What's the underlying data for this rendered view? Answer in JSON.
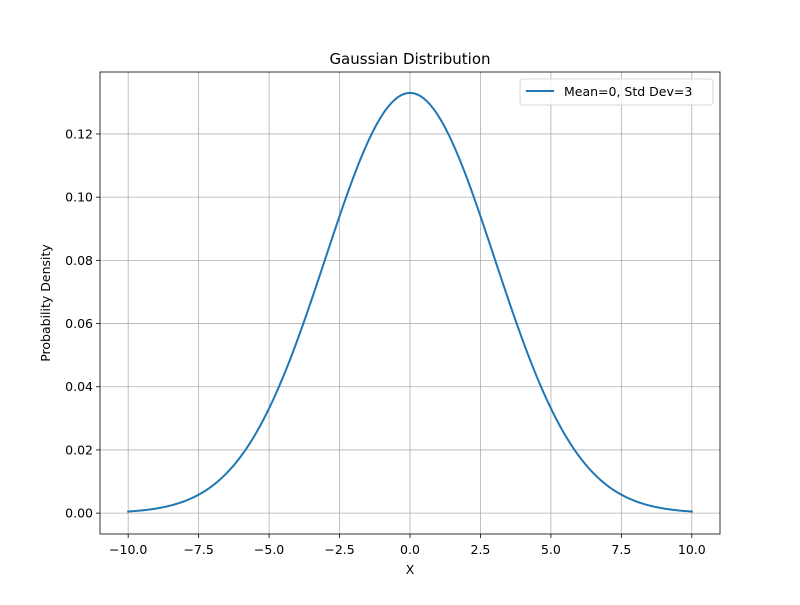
{
  "chart_data": {
    "type": "line",
    "title": "Gaussian Distribution",
    "xlabel": "X",
    "ylabel": "Probability Density",
    "xlim": [
      -11,
      11
    ],
    "ylim": [
      -0.0066,
      0.1396
    ],
    "xticks": [
      -10.0,
      -7.5,
      -5.0,
      -2.5,
      0.0,
      2.5,
      5.0,
      7.5,
      10.0
    ],
    "xtick_labels": [
      "−10.0",
      "−7.5",
      "−5.0",
      "−2.5",
      "0.0",
      "2.5",
      "5.0",
      "7.5",
      "10.0"
    ],
    "yticks": [
      0.0,
      0.02,
      0.04,
      0.06,
      0.08,
      0.1,
      0.12
    ],
    "ytick_labels": [
      "0.00",
      "0.02",
      "0.04",
      "0.06",
      "0.08",
      "0.10",
      "0.12"
    ],
    "grid": true,
    "legend_position": "top-right",
    "series": [
      {
        "name": "Mean=0, Std Dev=3",
        "color": "#1f77b4",
        "distribution": "normal",
        "mean": 0,
        "std": 3,
        "x": [
          -10,
          -9,
          -8,
          -7,
          -6,
          -5,
          -4,
          -3,
          -2,
          -1,
          0,
          1,
          2,
          3,
          4,
          5,
          6,
          7,
          8,
          9,
          10
        ],
        "y": [
          0.00051,
          0.00148,
          0.0038,
          0.00874,
          0.018,
          0.03315,
          0.05467,
          0.08066,
          0.10648,
          0.12579,
          0.13298,
          0.12579,
          0.10648,
          0.08066,
          0.05467,
          0.03315,
          0.018,
          0.00874,
          0.0038,
          0.00148,
          0.00051
        ]
      }
    ]
  }
}
